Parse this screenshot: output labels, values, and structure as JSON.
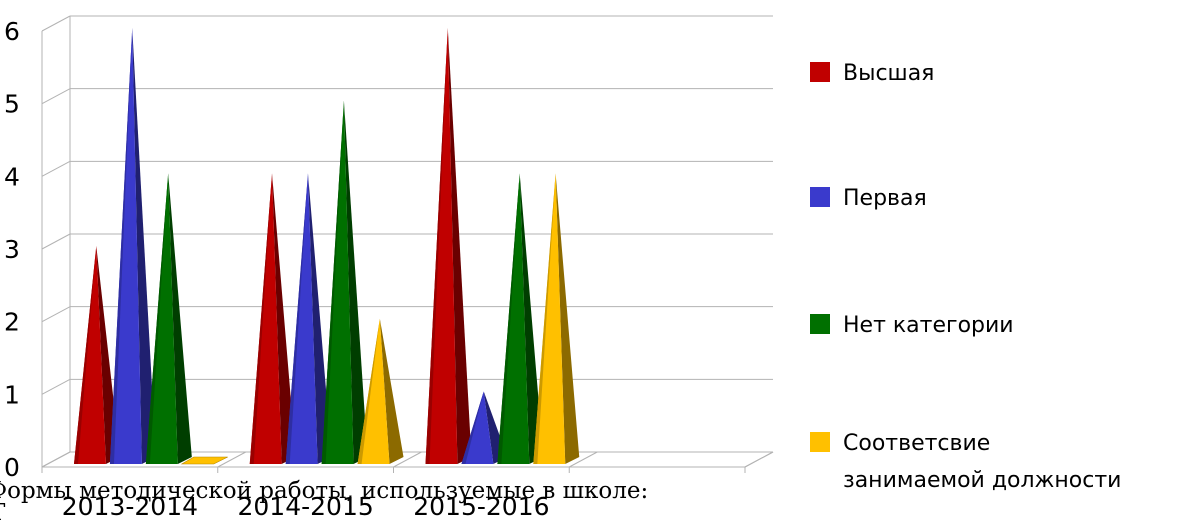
{
  "chart_data": {
    "type": "bar",
    "style": "3d-pyramid",
    "categories": [
      "2013-2014",
      "2014-2015",
      "2015-2016"
    ],
    "series": [
      {
        "name": "Высшая",
        "values": [
          3,
          4,
          6
        ],
        "color": "#C00000"
      },
      {
        "name": "Первая",
        "values": [
          6,
          4,
          1
        ],
        "color": "#3A3ACC"
      },
      {
        "name": "Нет категории",
        "values": [
          4,
          5,
          4
        ],
        "color": "#007000"
      },
      {
        "name": "Соответсвие занимаемой должности",
        "values": [
          0,
          2,
          4
        ],
        "color": "#FFC000"
      }
    ],
    "yticks": [
      "0",
      "1",
      "2",
      "3",
      "4",
      "5",
      "6"
    ],
    "ylim": [
      0,
      6
    ],
    "grid": true,
    "legend_position": "right"
  },
  "overlay_text": {
    "line1": "Формы методической работы, используемые в школе:",
    "line2": "Т"
  }
}
